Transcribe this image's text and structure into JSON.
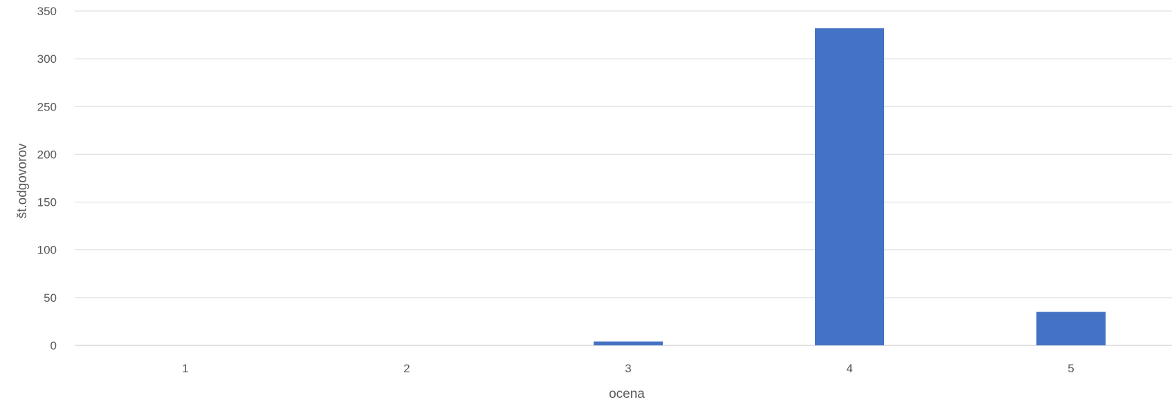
{
  "chart_data": {
    "type": "bar",
    "categories": [
      "1",
      "2",
      "3",
      "4",
      "5"
    ],
    "values": [
      0,
      0,
      4,
      332,
      35
    ],
    "title": "",
    "xlabel": "ocena",
    "ylabel": "št.odgovorov",
    "ylim": [
      0,
      350
    ],
    "yticks": [
      0,
      50,
      100,
      150,
      200,
      250,
      300,
      350
    ],
    "grid": true,
    "legend": "none",
    "bar_color": "#4472c4",
    "grid_color": "#d9d9d9",
    "text_color": "#595959"
  }
}
